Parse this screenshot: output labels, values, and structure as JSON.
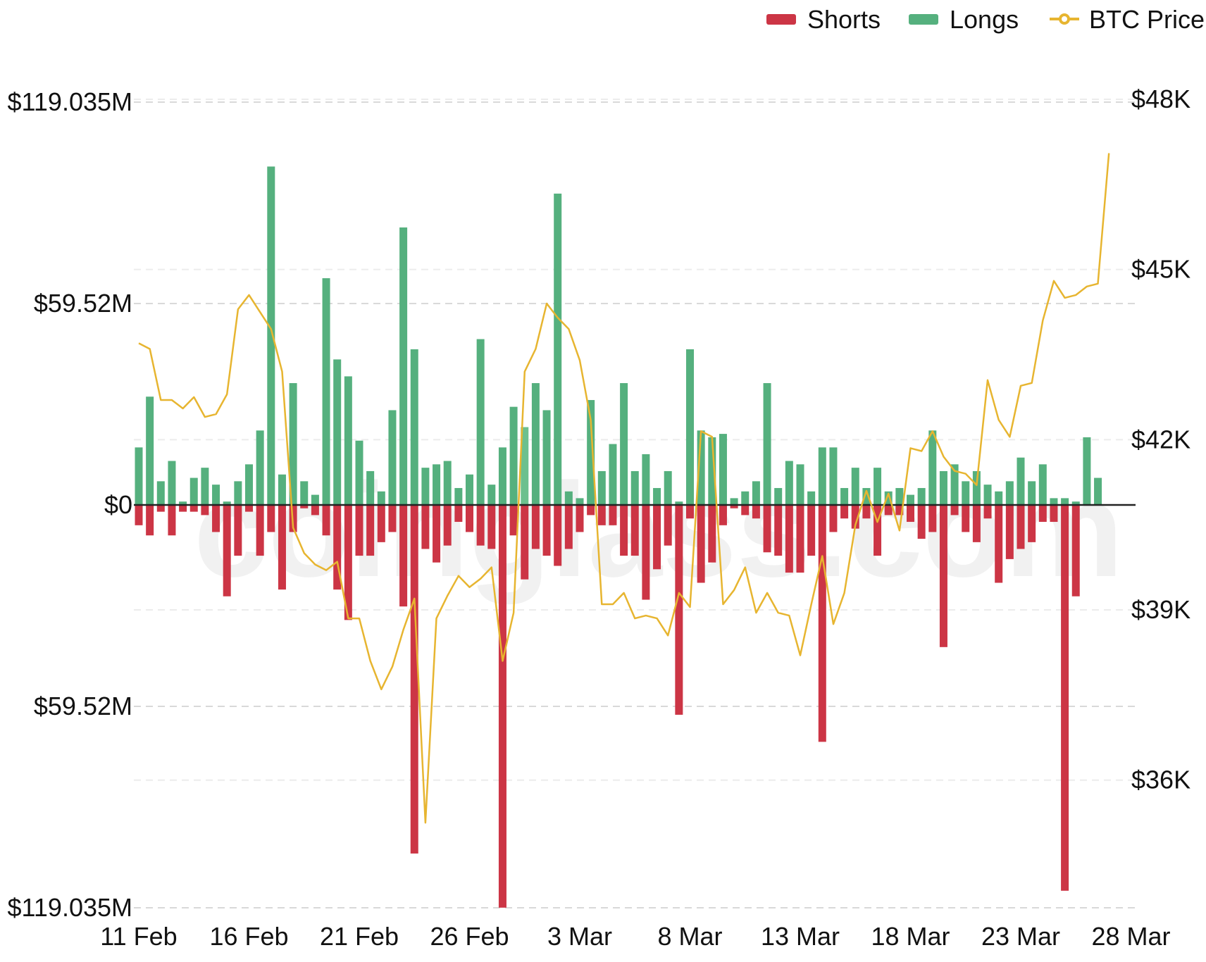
{
  "chart_data": {
    "type": "bar",
    "title": "",
    "watermark": "coinglass.com",
    "legend": {
      "placement": "top-right",
      "items": [
        {
          "label": "Shorts",
          "color": "#cc3545",
          "marker": "bar"
        },
        {
          "label": "Longs",
          "color": "#55b07e",
          "marker": "bar"
        },
        {
          "label": "BTC Price",
          "color": "#e7b530",
          "marker": "line"
        }
      ]
    },
    "left_axis": {
      "ylim": [
        -119.035,
        119.035
      ],
      "unit": "M USD",
      "ticks": [
        {
          "value": 119.035,
          "label": "$119.035M"
        },
        {
          "value": 59.52,
          "label": "$59.52M"
        },
        {
          "value": 0,
          "label": "$0"
        },
        {
          "value": -59.52,
          "label": "$59.52M"
        },
        {
          "value": -119.035,
          "label": "$119.035M"
        }
      ]
    },
    "right_axis": {
      "ylim": [
        33750,
        47950
      ],
      "ticks": [
        {
          "value": 48000,
          "label": "$48K"
        },
        {
          "value": 45000,
          "label": "$45K"
        },
        {
          "value": 42000,
          "label": "$42K"
        },
        {
          "value": 39000,
          "label": "$39K"
        },
        {
          "value": 36000,
          "label": "$36K"
        }
      ]
    },
    "grid": true,
    "x_tick_labels": [
      {
        "index": 0,
        "label": "11 Feb"
      },
      {
        "index": 10,
        "label": "16 Feb"
      },
      {
        "index": 20,
        "label": "21 Feb"
      },
      {
        "index": 30,
        "label": "26 Feb"
      },
      {
        "index": 40,
        "label": "3 Mar"
      },
      {
        "index": 50,
        "label": "8 Mar"
      },
      {
        "index": 60,
        "label": "13 Mar"
      },
      {
        "index": 70,
        "label": "18 Mar"
      },
      {
        "index": 80,
        "label": "23 Mar"
      },
      {
        "index": 90,
        "label": "28 Mar"
      }
    ],
    "series": [
      {
        "name": "Longs",
        "color": "#55b07e",
        "values": [
          17,
          32,
          7,
          13,
          1,
          8,
          11,
          6,
          1,
          7,
          12,
          22,
          100,
          9,
          36,
          7,
          3,
          67,
          43,
          38,
          19,
          10,
          4,
          28,
          82,
          46,
          11,
          12,
          13,
          5,
          9,
          49,
          6,
          17,
          29,
          23,
          36,
          28,
          92,
          4,
          2,
          31,
          10,
          18,
          36,
          10,
          15,
          5,
          10,
          1,
          46,
          22,
          20,
          21,
          2,
          4,
          7,
          36,
          5,
          13,
          12,
          4,
          17,
          17,
          5,
          11,
          5,
          11,
          4,
          5,
          3,
          5,
          22,
          10,
          12,
          7,
          10,
          6,
          4,
          7,
          14,
          7,
          12,
          2,
          2,
          1,
          20,
          8
        ],
        "highlight_index": 35,
        "highlight_color": "#6cc08e"
      },
      {
        "name": "Shorts",
        "color": "#cc3545",
        "values": [
          6,
          9,
          2,
          9,
          2,
          2,
          3,
          8,
          27,
          15,
          2,
          15,
          8,
          25,
          8,
          1,
          3,
          9,
          25,
          34,
          15,
          15,
          11,
          8,
          30,
          103,
          13,
          17,
          12,
          5,
          8,
          12,
          13,
          119,
          9,
          22,
          13,
          15,
          18,
          13,
          8,
          3,
          6,
          6,
          15,
          15,
          28,
          19,
          12,
          62,
          4,
          23,
          17,
          6,
          1,
          3,
          4,
          14,
          15,
          20,
          20,
          15,
          70,
          8,
          4,
          7,
          4,
          15,
          3,
          3,
          5,
          10,
          8,
          42,
          3,
          8,
          11,
          4,
          23,
          16,
          13,
          11,
          5,
          5,
          114,
          27
        ]
      },
      {
        "name": "BTC Price",
        "color": "#e7b530",
        "x_offset_index": 0,
        "values": [
          43700,
          43600,
          42700,
          42700,
          42550,
          42750,
          42400,
          42450,
          42800,
          44300,
          44550,
          44250,
          43950,
          43200,
          40450,
          40000,
          39800,
          39700,
          39850,
          38850,
          38850,
          38100,
          37600,
          38000,
          38650,
          39200,
          35250,
          38850,
          39250,
          39600,
          39400,
          39550,
          39750,
          38100,
          38950,
          43200,
          43600,
          44400,
          44150,
          43950,
          43400,
          42350,
          39100,
          39100,
          39300,
          38850,
          38900,
          38850,
          38550,
          39300,
          39050,
          42150,
          42050,
          39100,
          39350,
          39750,
          38950,
          39300,
          38950,
          38900,
          38200,
          39100,
          39950,
          38750,
          39300,
          40500,
          41100,
          40550,
          41050,
          40400,
          41850,
          41800,
          42150,
          41700,
          41450,
          41400,
          41200,
          43050,
          42350,
          42050,
          42950,
          43000,
          44100,
          44800,
          44500,
          44550,
          44700,
          44750,
          47050
        ]
      }
    ]
  }
}
